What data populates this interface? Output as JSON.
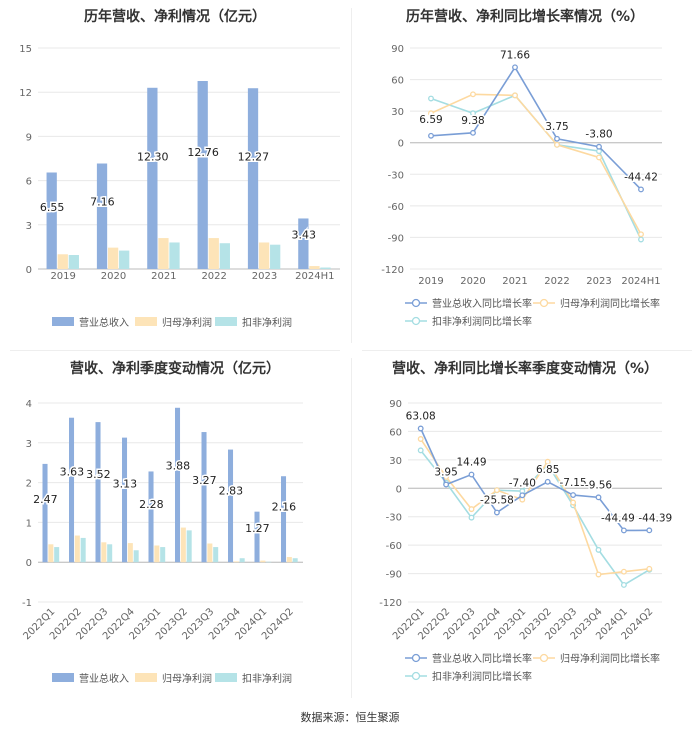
{
  "source": "数据来源：恒生聚源",
  "chart_data": [
    {
      "type": "bar",
      "title": "历年营收、净利情况（亿元）",
      "categories": [
        "2019",
        "2020",
        "2021",
        "2022",
        "2023",
        "2024H1"
      ],
      "ylim": [
        0,
        15
      ],
      "yticks": [
        0,
        3,
        6,
        9,
        12,
        15
      ],
      "grid": true,
      "legend_position": "bottom",
      "series": [
        {
          "name": "营业总收入",
          "color": "#8eaedd",
          "values": [
            6.55,
            7.16,
            12.3,
            12.76,
            12.27,
            3.43
          ],
          "labels": [
            "6.55",
            "7.16",
            "12.30",
            "12.76",
            "12.27",
            "3.43"
          ]
        },
        {
          "name": "归母净利润",
          "color": "#fde4b8",
          "values": [
            1.0,
            1.45,
            2.1,
            2.1,
            1.8,
            0.2
          ]
        },
        {
          "name": "扣非净利润",
          "color": "#b5e3e7",
          "values": [
            0.95,
            1.25,
            1.8,
            1.75,
            1.65,
            0.1
          ]
        }
      ]
    },
    {
      "type": "line",
      "title": "历年营收、净利同比增长率情况（%）",
      "categories": [
        "2019",
        "2020",
        "2021",
        "2022",
        "2023",
        "2024H1"
      ],
      "ylim": [
        -120,
        90
      ],
      "yticks": [
        -120,
        -90,
        -60,
        -30,
        0,
        30,
        60,
        90
      ],
      "grid": true,
      "legend_position": "bottom",
      "series": [
        {
          "name": "营业总收入同比增长率",
          "color": "#7a9ed6",
          "values": [
            6.59,
            9.38,
            71.66,
            3.75,
            -3.8,
            -44.42
          ],
          "labels": [
            "6.59",
            "9.38",
            "71.66",
            "3.75",
            "-3.80",
            "-44.42"
          ]
        },
        {
          "name": "归母净利润同比增长率",
          "color": "#fdd9a0",
          "values": [
            28,
            46,
            45,
            -2,
            -14,
            -87
          ]
        },
        {
          "name": "扣非净利润同比增长率",
          "color": "#a4dde2",
          "values": [
            42,
            28,
            45,
            -2,
            -8,
            -92
          ]
        }
      ]
    },
    {
      "type": "bar",
      "title": "营收、净利季度变动情况（亿元）",
      "categories": [
        "2022Q1",
        "2022Q2",
        "2022Q3",
        "2022Q4",
        "2023Q1",
        "2023Q2",
        "2023Q3",
        "2023Q4",
        "2024Q1",
        "2024Q2"
      ],
      "ylim": [
        -1,
        4
      ],
      "yticks": [
        -1,
        0,
        1,
        2,
        3,
        4
      ],
      "grid": true,
      "legend_position": "bottom",
      "series": [
        {
          "name": "营业总收入",
          "color": "#8eaedd",
          "values": [
            2.47,
            3.63,
            3.52,
            3.13,
            2.28,
            3.88,
            3.27,
            2.83,
            1.27,
            2.16
          ],
          "labels": [
            "2.47",
            "3.63",
            "3.52",
            "3.13",
            "2.28",
            "3.88",
            "3.27",
            "2.83",
            "1.27",
            "2.16"
          ]
        },
        {
          "name": "归母净利润",
          "color": "#fde4b8",
          "values": [
            0.45,
            0.67,
            0.5,
            0.48,
            0.42,
            0.87,
            0.47,
            0.02,
            0.04,
            0.13
          ]
        },
        {
          "name": "扣非净利润",
          "color": "#b5e3e7",
          "values": [
            0.38,
            0.61,
            0.45,
            0.3,
            0.38,
            0.8,
            0.38,
            0.1,
            0.01,
            0.1
          ]
        }
      ]
    },
    {
      "type": "line",
      "title": "营收、净利同比增长率季度变动情况（%）",
      "categories": [
        "2022Q1",
        "2022Q2",
        "2022Q3",
        "2022Q4",
        "2023Q1",
        "2023Q2",
        "2023Q3",
        "2023Q4",
        "2024Q1",
        "2024Q2"
      ],
      "ylim": [
        -120,
        90
      ],
      "yticks": [
        -120,
        -90,
        -60,
        -30,
        0,
        30,
        60,
        90
      ],
      "grid": true,
      "legend_position": "bottom",
      "series": [
        {
          "name": "营业总收入同比增长率",
          "color": "#7a9ed6",
          "values": [
            63.08,
            3.95,
            14.49,
            -25.58,
            -7.4,
            6.85,
            -7.15,
            -9.56,
            -44.49,
            -44.39
          ],
          "labels": [
            "63.08",
            "3.95",
            "14.49",
            "-25.58",
            "-7.40",
            "6.85",
            "-7.15",
            "-9.56",
            "-44.49",
            "-44.39"
          ]
        },
        {
          "name": "归母净利润同比增长率",
          "color": "#fdd9a0",
          "values": [
            52,
            12,
            -22,
            -2,
            -12,
            28,
            -15,
            -91,
            -88,
            -85
          ]
        },
        {
          "name": "扣非净利润同比增长率",
          "color": "#a4dde2",
          "values": [
            40,
            6,
            -31,
            -2,
            -3,
            25,
            -18,
            -65,
            -102,
            -86
          ]
        }
      ]
    }
  ]
}
